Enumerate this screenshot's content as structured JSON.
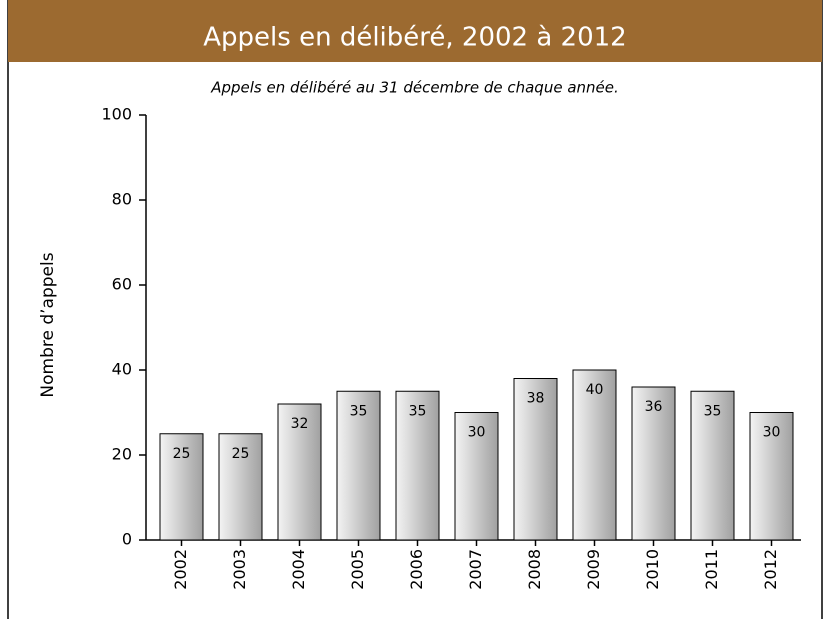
{
  "chart_data": {
    "type": "bar",
    "title": "Appels en délibéré, 2002 à 2012",
    "subtitle": "Appels en délibéré au 31 décembre de chaque année.",
    "y_label": "Nombre d’appels",
    "categories": [
      "2002",
      "2003",
      "2004",
      "2005",
      "2006",
      "2007",
      "2008",
      "2009",
      "2010",
      "2011",
      "2012"
    ],
    "values": [
      25,
      25,
      32,
      35,
      35,
      30,
      38,
      40,
      36,
      35,
      30
    ],
    "color": "#c8c8c8",
    "ylim": [
      0,
      100
    ],
    "yticks": [
      0,
      20,
      40,
      60,
      80,
      100
    ],
    "grid": false
  }
}
